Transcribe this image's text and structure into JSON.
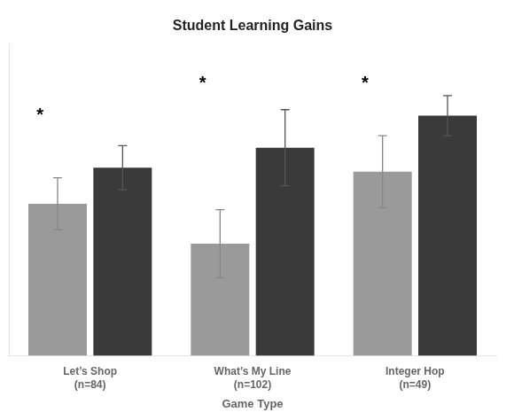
{
  "chart_data": {
    "type": "bar",
    "title": "Student Learning Gains",
    "xlabel": "Game Type",
    "categories": [
      "Let’s Shop\n(n=84)",
      "What’s My Line\n(n=102)",
      "Integer Hop\n(n=49)"
    ],
    "series": [
      {
        "color": "#9a9a9a",
        "values": [
          0.38,
          0.28,
          0.46
        ],
        "errors": [
          0.065,
          0.085,
          0.09
        ]
      },
      {
        "color": "#3a3a3a",
        "values": [
          0.47,
          0.52,
          0.6
        ],
        "errors": [
          0.055,
          0.095,
          0.05
        ]
      }
    ],
    "ylim": [
      0,
      0.78
    ],
    "tick_labels": "x",
    "grid": false,
    "annotations": [
      {
        "text": "*",
        "category": "Let’s Shop\n(n=84)",
        "y": 0.6
      },
      {
        "text": "*",
        "category": "What’s My Line\n(n=102)",
        "y": 0.68
      },
      {
        "text": "*",
        "category": "Integer Hop\n(n=49)",
        "y": 0.68
      }
    ]
  }
}
